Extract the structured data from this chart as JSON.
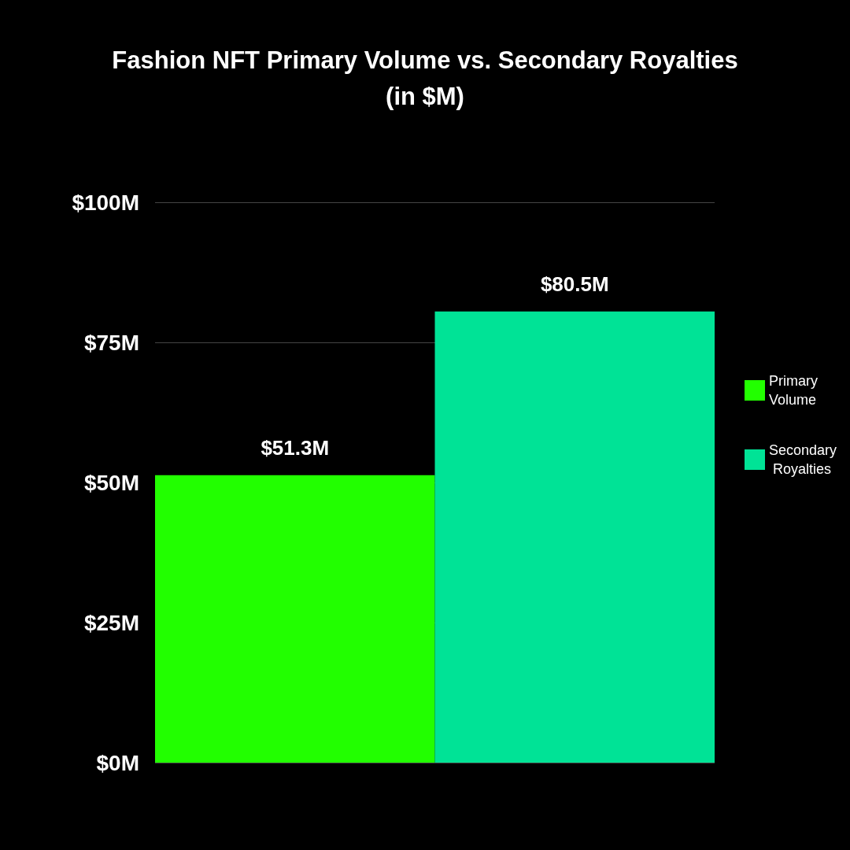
{
  "chart_data": {
    "type": "bar",
    "title": "Fashion NFT Primary Volume vs. Secondary Royalties\n(in $M)",
    "categories": [
      null
    ],
    "series": [
      {
        "name": "Primary Volume",
        "color": "#22ff00",
        "values": [
          51.3
        ],
        "value_labels": [
          "$51.3M"
        ]
      },
      {
        "name": "Secondary Royalties",
        "color": "#00e396",
        "values": [
          80.5
        ],
        "value_labels": [
          "$80.5M"
        ]
      }
    ],
    "ylim": [
      0,
      100
    ],
    "yticks": [
      {
        "value": 0,
        "label": "$0M"
      },
      {
        "value": 25,
        "label": "$25M"
      },
      {
        "value": 50,
        "label": "$50M"
      },
      {
        "value": 75,
        "label": "$75M"
      },
      {
        "value": 100,
        "label": "$100M"
      }
    ],
    "grid": "y",
    "legend": "right"
  }
}
